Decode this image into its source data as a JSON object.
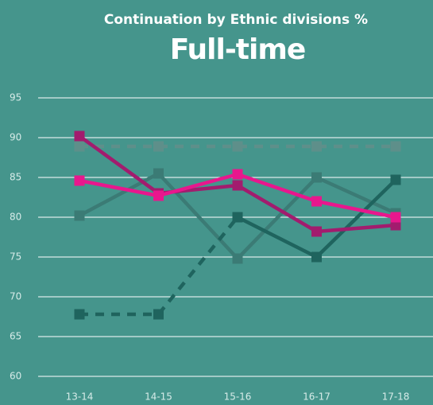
{
  "chart_data": {
    "type": "line",
    "title": "Continuation by Ethnic divisions  %",
    "subtitle": "Full-time",
    "categories": [
      "13-14",
      "14-15",
      "15-16",
      "16-17",
      "17-18"
    ],
    "series": [
      {
        "color": "#5e8f8a",
        "dash": true,
        "values": [
          88.9,
          88.9,
          88.9,
          88.9,
          88.9
        ]
      },
      {
        "color": "#3b7b75",
        "dash": false,
        "values": [
          80.2,
          85.5,
          74.8,
          85,
          80.5
        ]
      },
      {
        "color": "#1f645e",
        "dash": true,
        "values": [
          67.8,
          67.8,
          80,
          null,
          null
        ]
      },
      {
        "color": "#1f645e",
        "dash": false,
        "values": [
          null,
          null,
          80,
          75,
          84.7
        ]
      },
      {
        "color": "#a21c6e",
        "dash": false,
        "values": [
          90.2,
          83,
          84,
          78.2,
          79
        ]
      },
      {
        "color": "#e8178d",
        "dash": false,
        "values": [
          84.6,
          82.7,
          85.4,
          82,
          80
        ]
      }
    ],
    "ylim": [
      60,
      95
    ],
    "yticks": [
      60,
      65,
      70,
      75,
      80,
      85,
      90,
      95
    ],
    "grid": true
  }
}
